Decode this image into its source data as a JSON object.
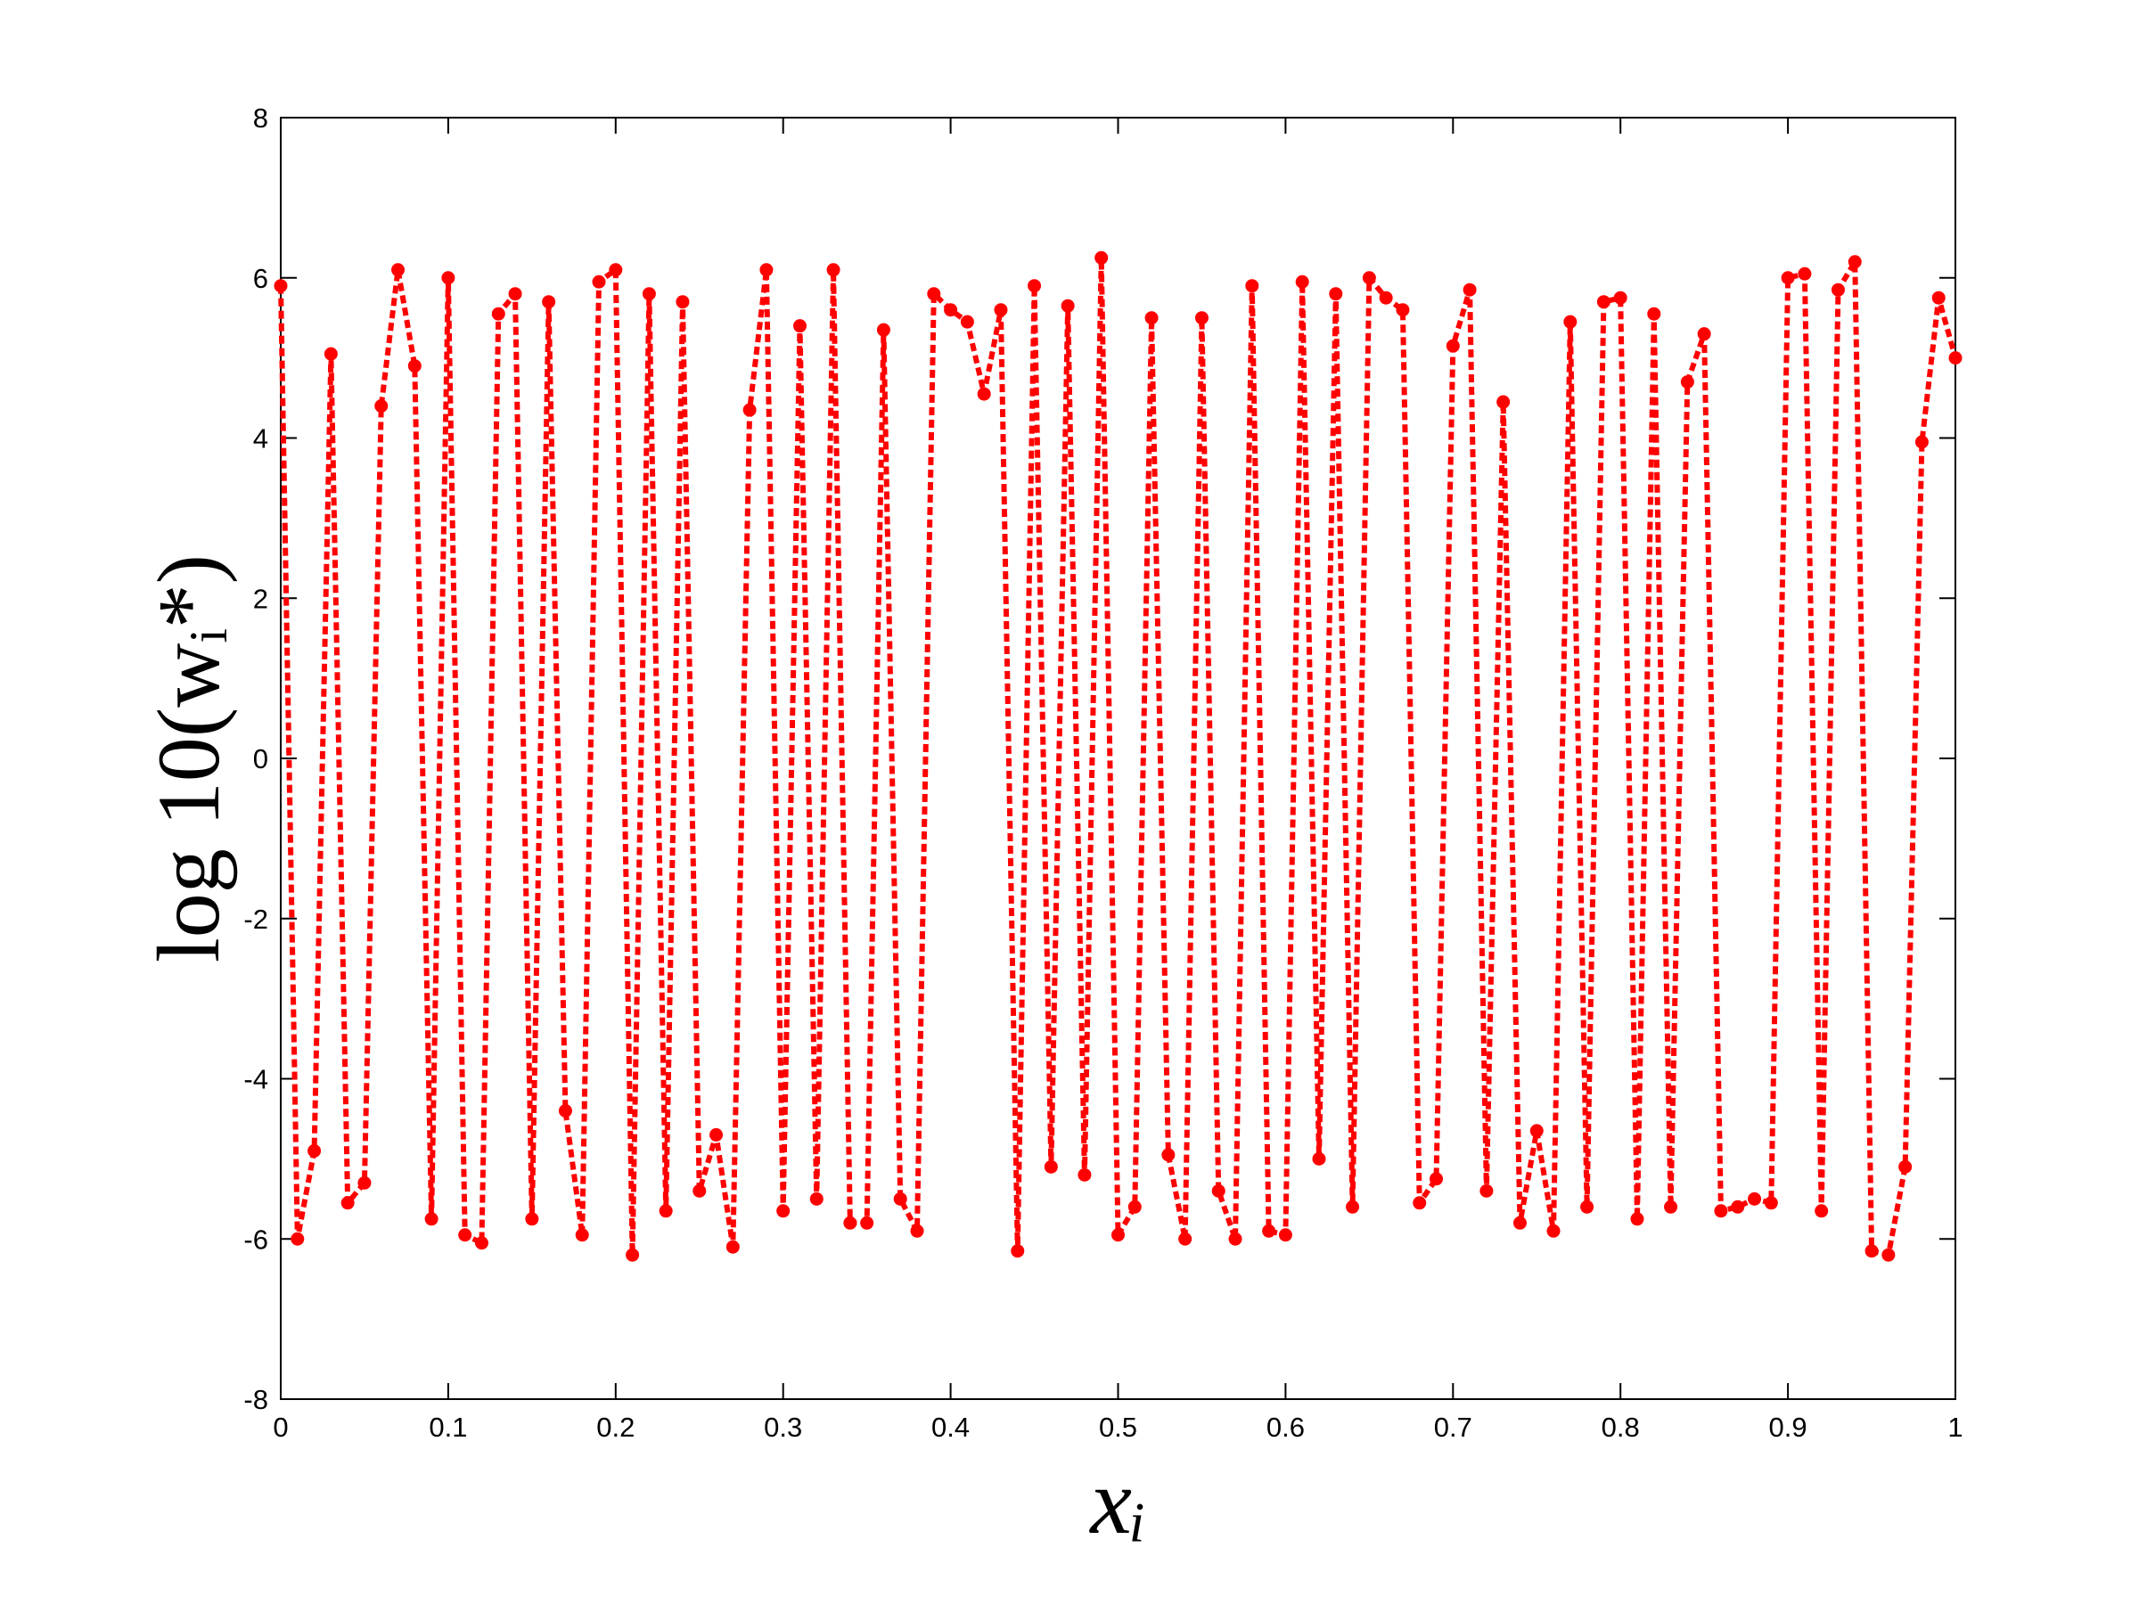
{
  "chart_data": {
    "type": "line",
    "xlabel": "xᵢ",
    "ylabel": "log 10(wᵢ*)",
    "x": [
      0,
      0.01,
      0.02,
      0.03,
      0.04,
      0.05,
      0.06,
      0.07,
      0.08,
      0.09,
      0.1,
      0.11,
      0.12,
      0.13,
      0.14,
      0.15,
      0.16,
      0.17,
      0.18,
      0.19,
      0.2,
      0.21,
      0.22,
      0.23,
      0.24,
      0.25,
      0.26,
      0.27,
      0.28,
      0.29,
      0.3,
      0.31,
      0.32,
      0.33,
      0.34,
      0.35,
      0.36,
      0.37,
      0.38,
      0.39,
      0.4,
      0.41,
      0.42,
      0.43,
      0.44,
      0.45,
      0.46,
      0.47,
      0.48,
      0.49,
      0.5,
      0.51,
      0.52,
      0.53,
      0.54,
      0.55,
      0.56,
      0.57,
      0.58,
      0.59,
      0.6,
      0.61,
      0.62,
      0.63,
      0.64,
      0.65,
      0.66,
      0.67,
      0.68,
      0.69,
      0.7,
      0.71,
      0.72,
      0.73,
      0.74,
      0.75,
      0.76,
      0.77,
      0.78,
      0.79,
      0.8,
      0.81,
      0.82,
      0.83,
      0.84,
      0.85,
      0.86,
      0.87,
      0.88,
      0.89,
      0.9,
      0.91,
      0.92,
      0.93,
      0.94,
      0.95,
      0.96,
      0.97,
      0.98,
      0.99,
      1
    ],
    "values": [
      5.9,
      -6.0,
      -4.9,
      5.05,
      -5.55,
      -5.3,
      4.4,
      6.1,
      4.9,
      -5.75,
      6.0,
      -5.95,
      -6.05,
      5.55,
      5.8,
      -5.75,
      5.7,
      -4.4,
      -5.95,
      5.95,
      6.1,
      -6.2,
      5.8,
      -5.65,
      5.7,
      -5.4,
      -4.7,
      -6.1,
      4.35,
      6.1,
      -5.65,
      5.4,
      -5.5,
      6.1,
      -5.8,
      -5.8,
      5.35,
      -5.5,
      -5.9,
      5.8,
      5.6,
      5.45,
      4.55,
      5.6,
      -6.15,
      5.9,
      -5.1,
      5.65,
      -5.2,
      6.25,
      -5.95,
      -5.6,
      5.5,
      -4.95,
      -6.0,
      5.5,
      -5.4,
      -6.0,
      5.9,
      -5.9,
      -5.95,
      5.95,
      -5.0,
      5.8,
      -5.6,
      6.0,
      5.75,
      5.6,
      -5.55,
      -5.25,
      5.15,
      5.85,
      -5.4,
      4.45,
      -5.8,
      -4.65,
      -5.9,
      5.45,
      -5.6,
      5.7,
      5.75,
      -5.75,
      5.55,
      -5.6,
      4.7,
      5.3,
      -5.65,
      -5.6,
      -5.5,
      -5.55,
      6.0,
      6.05,
      -5.65,
      5.85,
      6.2,
      -6.15,
      -6.2,
      -5.1,
      3.95,
      5.75,
      5.0
    ],
    "color": "#ff0000",
    "xlim": [
      0,
      1
    ],
    "ylim": [
      -8,
      8
    ],
    "xticks": [
      0,
      0.1,
      0.2,
      0.3,
      0.4,
      0.5,
      0.6,
      0.7,
      0.8,
      0.9,
      1
    ],
    "yticks": [
      -8,
      -6,
      -4,
      -2,
      0,
      2,
      4,
      6,
      8
    ],
    "grid": false
  }
}
